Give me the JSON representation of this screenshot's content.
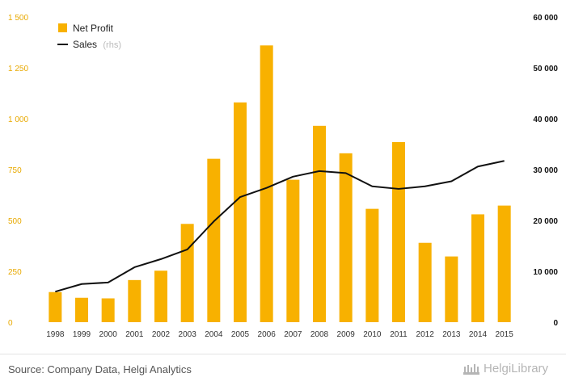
{
  "colors": {
    "bar": "#f8b100",
    "line": "#111111",
    "left_tick": "#e8a900",
    "right_tick": "#111111"
  },
  "chart_data": {
    "type": "bar",
    "categories": [
      "1998",
      "1999",
      "2000",
      "2001",
      "2002",
      "2003",
      "2004",
      "2005",
      "2006",
      "2007",
      "2008",
      "2009",
      "2010",
      "2011",
      "2012",
      "2013",
      "2014",
      "2015"
    ],
    "series": [
      {
        "name": "Net Profit",
        "type": "bar",
        "axis": "left",
        "values": [
          148,
          120,
          117,
          207,
          253,
          483,
          803,
          1080,
          1360,
          700,
          965,
          830,
          557,
          885,
          390,
          323,
          530,
          573
        ]
      },
      {
        "name": "Sales",
        "name_suffix": "(rhs)",
        "type": "line",
        "axis": "right",
        "values": [
          6000,
          7500,
          7800,
          10800,
          12400,
          14300,
          19800,
          24600,
          26400,
          28600,
          29700,
          29300,
          26700,
          26200,
          26700,
          27700,
          30600,
          31700
        ]
      }
    ],
    "ylim_left": [
      0,
      1500
    ],
    "ylim_right": [
      0,
      60000
    ],
    "yticks_left": [
      "0",
      "250",
      "500",
      "750",
      "1 000",
      "1 250",
      "1 500"
    ],
    "yticks_right": [
      "0",
      "10 000",
      "20 000",
      "30 000",
      "40 000",
      "50 000",
      "60 000"
    ],
    "legend_position": "top-left"
  },
  "footer": {
    "source": "Source: Company Data, Helgi Analytics",
    "brand": "HelgiLibrary"
  }
}
